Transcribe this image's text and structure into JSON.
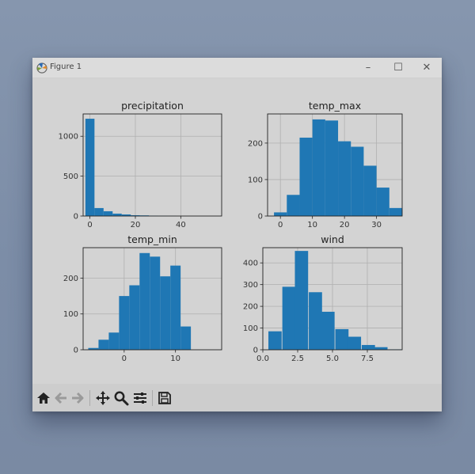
{
  "window": {
    "title": "Figure 1",
    "controls": {
      "minimize": "–",
      "maximize": "☐",
      "close": "✕"
    }
  },
  "toolbar": {
    "buttons": [
      "home-icon",
      "back-arrow-icon",
      "forward-arrow-icon",
      "pan-move-icon",
      "zoom-magnifier-icon",
      "configure-subplots-icon",
      "save-floppy-icon"
    ]
  },
  "colors": {
    "bar": "#1f77b4",
    "figure_bg": "#d3d3d3",
    "grid": "#b0b0b0"
  },
  "chart_data": [
    {
      "type": "bar",
      "title": "precipitation",
      "x": [
        -2,
        2,
        6,
        10,
        14,
        18,
        22,
        26,
        30,
        34
      ],
      "bar_width": 4,
      "values": [
        1220,
        100,
        60,
        30,
        20,
        10,
        8,
        5,
        3,
        2
      ],
      "xlim": [
        -3,
        58
      ],
      "ylim": [
        0,
        1280
      ],
      "xticks": [
        0,
        20,
        40
      ],
      "xtick_labels": [
        "0",
        "20",
        "40"
      ],
      "yticks": [
        0,
        500,
        1000
      ],
      "ytick_labels": [
        "0",
        "500",
        "1000"
      ],
      "grid": true
    },
    {
      "type": "bar",
      "title": "temp_max",
      "x": [
        -2,
        2,
        6,
        10,
        14,
        18,
        22,
        26,
        30,
        34
      ],
      "bar_width": 4,
      "values": [
        10,
        58,
        215,
        265,
        262,
        205,
        190,
        138,
        78,
        22
      ],
      "xlim": [
        -4,
        38
      ],
      "ylim": [
        0,
        280
      ],
      "xticks": [
        0,
        10,
        20,
        30
      ],
      "xtick_labels": [
        "0",
        "10",
        "20",
        "30"
      ],
      "yticks": [
        0,
        100,
        200
      ],
      "ytick_labels": [
        "0",
        "100",
        "200"
      ],
      "grid": true
    },
    {
      "type": "bar",
      "title": "temp_min",
      "x": [
        -7,
        -5,
        -3,
        -1,
        1,
        3,
        5,
        7,
        9,
        11,
        13
      ],
      "bar_width": 2,
      "values": [
        5,
        28,
        48,
        150,
        180,
        270,
        260,
        205,
        235,
        65,
        0
      ],
      "xlim": [
        -8,
        19
      ],
      "ylim": [
        0,
        285
      ],
      "xticks": [
        0,
        10
      ],
      "xtick_labels": [
        "0",
        "10"
      ],
      "yticks": [
        0,
        100,
        200
      ],
      "ytick_labels": [
        "0",
        "100",
        "200"
      ],
      "grid": true
    },
    {
      "type": "bar",
      "title": "wind",
      "x": [
        0.4,
        1.4,
        2.3,
        3.3,
        4.2,
        5.2,
        6.1,
        7.1,
        8.0,
        9.0
      ],
      "bar_width": 0.95,
      "values": [
        85,
        290,
        455,
        265,
        175,
        95,
        60,
        22,
        12,
        2
      ],
      "xlim": [
        0,
        10
      ],
      "ylim": [
        0,
        470
      ],
      "xticks": [
        0,
        2.5,
        5,
        7.5
      ],
      "xtick_labels": [
        "0.0",
        "2.5",
        "5.0",
        "7.5"
      ],
      "yticks": [
        0,
        100,
        200,
        300,
        400
      ],
      "ytick_labels": [
        "0",
        "100",
        "200",
        "300",
        "400"
      ],
      "grid": true
    }
  ]
}
